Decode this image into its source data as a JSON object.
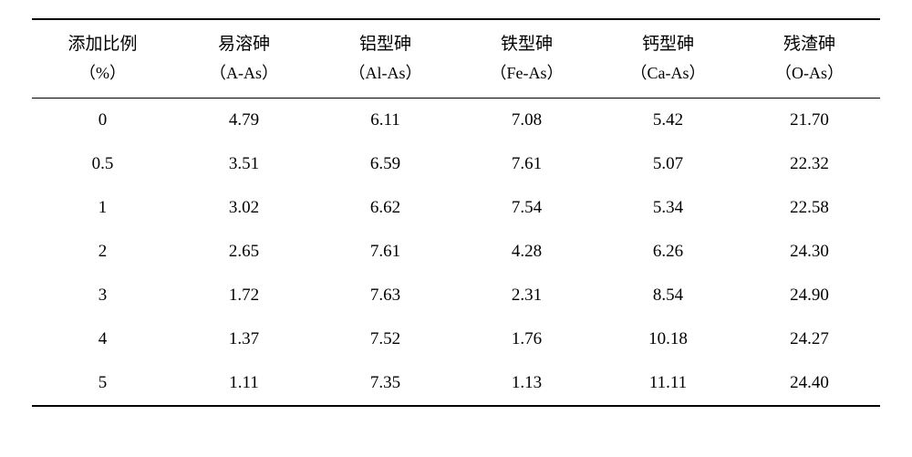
{
  "table": {
    "type": "table",
    "background_color": "#ffffff",
    "text_color": "#000000",
    "border_color": "#000000",
    "font_family": "SimSun",
    "header_fontsize": 19,
    "cell_fontsize": 19,
    "columns": [
      {
        "main": "添加比例",
        "sub": "（%）"
      },
      {
        "main": "易溶砷",
        "sub": "（A-As）"
      },
      {
        "main": "铝型砷",
        "sub": "（Al-As）"
      },
      {
        "main": "铁型砷",
        "sub": "（Fe-As）"
      },
      {
        "main": "钙型砷",
        "sub": "（Ca-As）"
      },
      {
        "main": "残渣砷",
        "sub": "（O-As）"
      }
    ],
    "rows": [
      [
        "0",
        "4.79",
        "6.11",
        "7.08",
        "5.42",
        "21.70"
      ],
      [
        "0.5",
        "3.51",
        "6.59",
        "7.61",
        "5.07",
        "22.32"
      ],
      [
        "1",
        "3.02",
        "6.62",
        "7.54",
        "5.34",
        "22.58"
      ],
      [
        "2",
        "2.65",
        "7.61",
        "4.28",
        "6.26",
        "24.30"
      ],
      [
        "3",
        "1.72",
        "7.63",
        "2.31",
        "8.54",
        "24.90"
      ],
      [
        "4",
        "1.37",
        "7.52",
        "1.76",
        "10.18",
        "24.27"
      ],
      [
        "5",
        "1.11",
        "7.35",
        "1.13",
        "11.11",
        "24.40"
      ]
    ]
  }
}
